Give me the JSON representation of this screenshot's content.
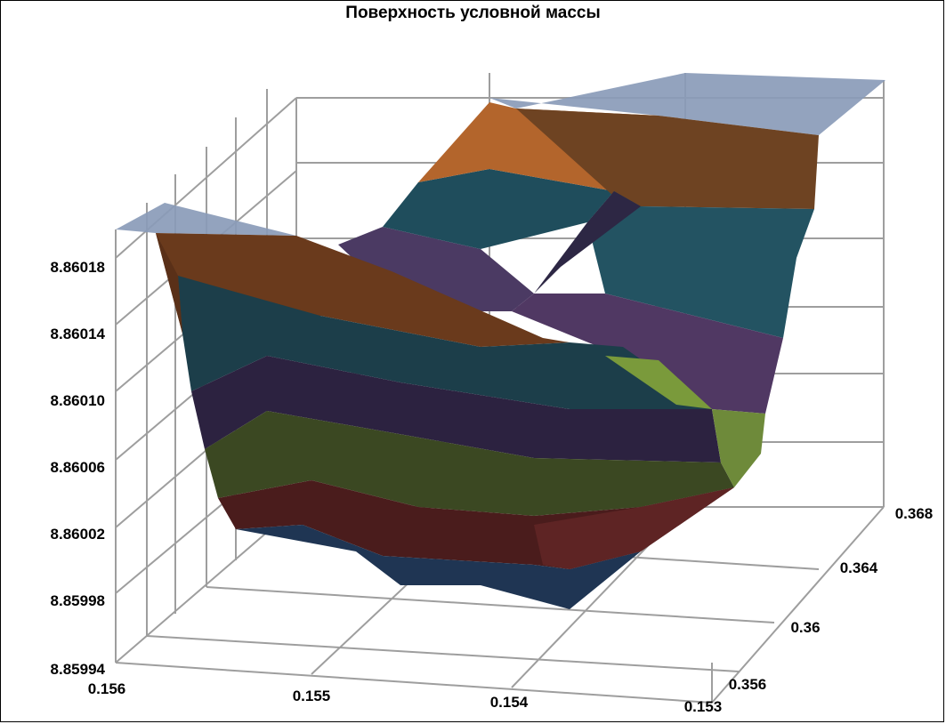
{
  "chart_data": {
    "type": "surface",
    "title": "Поверхность условной массы",
    "x_ticks": [
      "0.156",
      "0.155",
      "0.154",
      "0.153"
    ],
    "y_ticks": [
      "0.356",
      "0.36",
      "0.364",
      "0.368"
    ],
    "z_ticks": [
      "8.85994",
      "8.85998",
      "8.86002",
      "8.86006",
      "8.86010",
      "8.86014",
      "8.86018"
    ],
    "zlim": [
      8.85994,
      8.86022
    ],
    "grid": true,
    "band_colors": [
      "#1f3553",
      "#4a1c1c",
      "#39461f",
      "#2e2440",
      "#1d3f4b",
      "#5c3318",
      "#8a9bb9"
    ]
  }
}
